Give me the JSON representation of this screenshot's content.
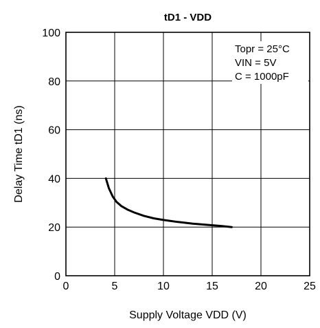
{
  "chart_data": {
    "type": "line",
    "title": "tD1 - VDD",
    "xlabel": "Supply Voltage VDD (V)",
    "ylabel": "Delay Time tD1 (ns)",
    "xlim": [
      0,
      25
    ],
    "ylim": [
      0,
      100
    ],
    "x_ticks": [
      0,
      5,
      10,
      15,
      20,
      25
    ],
    "y_ticks": [
      0,
      20,
      40,
      60,
      80,
      100
    ],
    "grid": true,
    "annotations": [
      "Topr = 25°C",
      "VIN = 5V",
      "C = 1000pF"
    ],
    "series": [
      {
        "x": [
          4.1,
          4.4,
          4.8,
          5.2,
          5.7,
          6.3,
          7,
          8,
          9,
          10,
          11.5,
          13,
          14.5,
          16,
          17
        ],
        "y": [
          40,
          36,
          32.5,
          30.3,
          28.6,
          27.2,
          26,
          24.6,
          23.6,
          22.9,
          22.1,
          21.4,
          20.9,
          20.4,
          20
        ]
      }
    ]
  }
}
